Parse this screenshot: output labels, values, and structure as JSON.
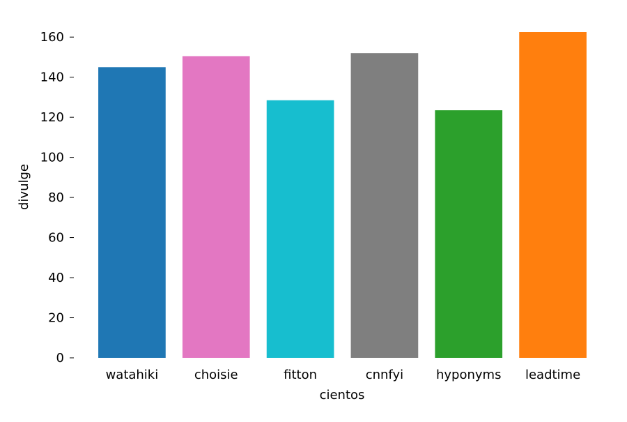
{
  "chart_data": {
    "type": "bar",
    "xlabel": "cientos",
    "ylabel": "divulge",
    "categories": [
      "watahiki",
      "choisie",
      "fitton",
      "cnnfyi",
      "hyponyms",
      "leadtime"
    ],
    "values": [
      145,
      150.5,
      128.5,
      152,
      123.5,
      162.5
    ],
    "colors": [
      "#1f77b4",
      "#e377c2",
      "#17becf",
      "#7f7f7f",
      "#2ca02c",
      "#ff7f0e"
    ],
    "y_ticks": [
      0,
      20,
      40,
      60,
      80,
      100,
      120,
      140,
      160
    ],
    "ylim": [
      0,
      162.5
    ],
    "grid": false
  }
}
